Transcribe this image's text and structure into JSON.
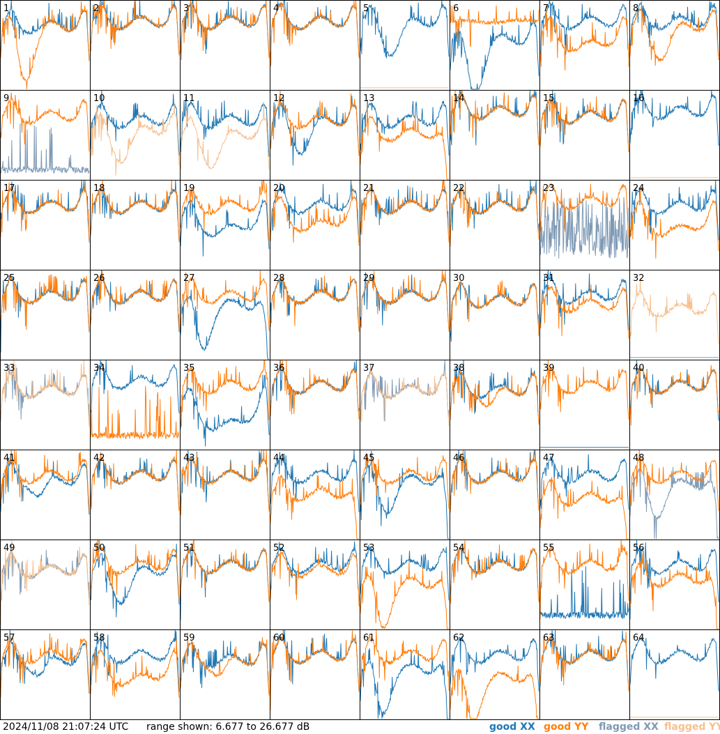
{
  "footer": {
    "timestamp": "2024/11/08 21:07:24 UTC",
    "range_text": "range shown: 6.677 to 26.677 dB"
  },
  "legend": [
    {
      "key": "good_xx",
      "label": "good XX",
      "color": "#1f77b4"
    },
    {
      "key": "good_yy",
      "label": "good YY",
      "color": "#ff7f0e"
    },
    {
      "key": "flagged_xx",
      "label": "flagged XX",
      "color": "#7f9ab5"
    },
    {
      "key": "flagged_yy",
      "label": "flagged YY",
      "color": "#f7c08e"
    }
  ],
  "chart_data": {
    "type": "line",
    "grid": {
      "rows": 8,
      "cols": 8
    },
    "ylim": [
      6.677,
      26.677
    ],
    "yunit": "dB",
    "panels": [
      {
        "id": "1",
        "xx": "good",
        "yy": "good",
        "xx_shape": "normal",
        "yy_shape": "dip_deep",
        "xx_level": 20,
        "yy_level": 20
      },
      {
        "id": "2",
        "xx": "good",
        "yy": "good",
        "xx_shape": "normal",
        "yy_shape": "normal",
        "xx_level": 21,
        "yy_level": 21
      },
      {
        "id": "3",
        "xx": "good",
        "yy": "good",
        "xx_shape": "normal",
        "yy_shape": "normal",
        "xx_level": 21,
        "yy_level": 21
      },
      {
        "id": "4",
        "xx": "good",
        "yy": "good",
        "xx_shape": "normal",
        "yy_shape": "normal",
        "xx_level": 21,
        "yy_level": 21
      },
      {
        "id": "5",
        "xx": "good",
        "yy": "flagged",
        "xx_shape": "dip_mid",
        "yy_shape": "flat_low",
        "xx_level": 21,
        "yy_level": 7
      },
      {
        "id": "6",
        "xx": "good",
        "yy": "good",
        "xx_shape": "dip_deep",
        "yy_shape": "flat",
        "xx_level": 17,
        "yy_level": 22
      },
      {
        "id": "7",
        "xx": "good",
        "yy": "good",
        "xx_shape": "normal",
        "yy_shape": "sag",
        "xx_level": 21,
        "yy_level": 19
      },
      {
        "id": "8",
        "xx": "good",
        "yy": "good",
        "xx_shape": "normal",
        "yy_shape": "dip_mid",
        "xx_level": 21,
        "yy_level": 20
      },
      {
        "id": "9",
        "xx": "flagged",
        "yy": "good",
        "xx_shape": "noise_low",
        "yy_shape": "normal",
        "xx_level": 8,
        "yy_level": 20
      },
      {
        "id": "10",
        "xx": "good",
        "yy": "flagged",
        "xx_shape": "normal",
        "yy_shape": "dip_mid",
        "xx_level": 19,
        "yy_level": 17
      },
      {
        "id": "11",
        "xx": "good",
        "yy": "flagged",
        "xx_shape": "normal",
        "yy_shape": "dip_mid",
        "xx_level": 19,
        "yy_level": 16
      },
      {
        "id": "12",
        "xx": "good",
        "yy": "good",
        "xx_shape": "dip_mid",
        "yy_shape": "normal",
        "xx_level": 19,
        "yy_level": 19
      },
      {
        "id": "13",
        "xx": "good",
        "yy": "good",
        "xx_shape": "normal",
        "yy_shape": "drop_end",
        "xx_level": 19,
        "yy_level": 18
      },
      {
        "id": "14",
        "xx": "good",
        "yy": "good",
        "xx_shape": "normal",
        "yy_shape": "normal",
        "xx_level": 21,
        "yy_level": 21
      },
      {
        "id": "15",
        "xx": "good",
        "yy": "good",
        "xx_shape": "normal",
        "yy_shape": "normal",
        "xx_level": 20,
        "yy_level": 20
      },
      {
        "id": "16",
        "xx": "good",
        "yy": "flagged",
        "xx_shape": "normal",
        "yy_shape": "flat_low",
        "xx_level": 21,
        "yy_level": 7
      },
      {
        "id": "17",
        "xx": "good",
        "yy": "good",
        "xx_shape": "normal",
        "yy_shape": "normal",
        "xx_level": 20,
        "yy_level": 20
      },
      {
        "id": "18",
        "xx": "good",
        "yy": "good",
        "xx_shape": "normal",
        "yy_shape": "normal",
        "xx_level": 20,
        "yy_level": 20
      },
      {
        "id": "19",
        "xx": "good",
        "yy": "good",
        "xx_shape": "sag",
        "yy_shape": "normal",
        "xx_level": 18,
        "yy_level": 20
      },
      {
        "id": "20",
        "xx": "good",
        "yy": "good",
        "xx_shape": "normal",
        "yy_shape": "sag",
        "xx_level": 20,
        "yy_level": 19
      },
      {
        "id": "21",
        "xx": "good",
        "yy": "good",
        "xx_shape": "normal",
        "yy_shape": "normal",
        "xx_level": 20,
        "yy_level": 20
      },
      {
        "id": "22",
        "xx": "good",
        "yy": "good",
        "xx_shape": "normal",
        "yy_shape": "normal",
        "xx_level": 20,
        "yy_level": 20
      },
      {
        "id": "23",
        "xx": "flagged",
        "yy": "good",
        "xx_shape": "noise_high",
        "yy_shape": "normal",
        "xx_level": 14,
        "yy_level": 21
      },
      {
        "id": "24",
        "xx": "good",
        "yy": "good",
        "xx_shape": "normal",
        "yy_shape": "sag",
        "xx_level": 20,
        "yy_level": 18
      },
      {
        "id": "25",
        "xx": "good",
        "yy": "good",
        "xx_shape": "normal",
        "yy_shape": "normal",
        "xx_level": 20,
        "yy_level": 20
      },
      {
        "id": "26",
        "xx": "good",
        "yy": "good",
        "xx_shape": "normal",
        "yy_shape": "normal",
        "xx_level": 20,
        "yy_level": 20
      },
      {
        "id": "27",
        "xx": "good",
        "yy": "good",
        "xx_shape": "dip_deep_drop",
        "yy_shape": "normal",
        "xx_level": 18,
        "yy_level": 20
      },
      {
        "id": "28",
        "xx": "good",
        "yy": "good",
        "xx_shape": "normal",
        "yy_shape": "normal",
        "xx_level": 20,
        "yy_level": 20
      },
      {
        "id": "29",
        "xx": "good",
        "yy": "good",
        "xx_shape": "normal",
        "yy_shape": "normal",
        "xx_level": 20,
        "yy_level": 20
      },
      {
        "id": "30",
        "xx": "good",
        "yy": "good",
        "xx_shape": "normal",
        "yy_shape": "normal",
        "xx_level": 19,
        "yy_level": 19
      },
      {
        "id": "31",
        "xx": "good",
        "yy": "good",
        "xx_shape": "normal",
        "yy_shape": "normal",
        "xx_level": 20,
        "yy_level": 18
      },
      {
        "id": "32",
        "xx": "flagged",
        "yy": "flagged",
        "xx_shape": "flat_low",
        "yy_shape": "normal",
        "xx_level": 7,
        "yy_level": 17
      },
      {
        "id": "33",
        "xx": "flagged",
        "yy": "flagged",
        "xx_shape": "normal",
        "yy_shape": "normal",
        "xx_level": 19,
        "yy_level": 19
      },
      {
        "id": "34",
        "xx": "good",
        "yy": "good",
        "xx_shape": "normal",
        "yy_shape": "noise_low",
        "xx_level": 21,
        "yy_level": 9
      },
      {
        "id": "35",
        "xx": "good",
        "yy": "good",
        "xx_shape": "sag_deep",
        "yy_shape": "normal",
        "xx_level": 17,
        "yy_level": 20
      },
      {
        "id": "36",
        "xx": "good",
        "yy": "good",
        "xx_shape": "normal",
        "yy_shape": "normal",
        "xx_level": 20,
        "yy_level": 20
      },
      {
        "id": "37",
        "xx": "flagged",
        "yy": "flagged",
        "xx_shape": "normal",
        "yy_shape": "normal",
        "xx_level": 19,
        "yy_level": 19
      },
      {
        "id": "38",
        "xx": "good",
        "yy": "good",
        "xx_shape": "normal",
        "yy_shape": "dip_small",
        "xx_level": 19,
        "yy_level": 19
      },
      {
        "id": "39",
        "xx": "good",
        "yy": "good",
        "xx_shape": "flat_low",
        "yy_shape": "normal",
        "xx_level": 7,
        "yy_level": 20
      },
      {
        "id": "40",
        "xx": "good",
        "yy": "good",
        "xx_shape": "normal",
        "yy_shape": "normal",
        "xx_level": 20,
        "yy_level": 20
      },
      {
        "id": "41",
        "xx": "good",
        "yy": "good",
        "xx_shape": "dip_small",
        "yy_shape": "normal",
        "xx_level": 19,
        "yy_level": 20
      },
      {
        "id": "42",
        "xx": "good",
        "yy": "good",
        "xx_shape": "normal",
        "yy_shape": "normal",
        "xx_level": 20,
        "yy_level": 20
      },
      {
        "id": "43",
        "xx": "good",
        "yy": "good",
        "xx_shape": "normal",
        "yy_shape": "normal",
        "xx_level": 20,
        "yy_level": 20
      },
      {
        "id": "44",
        "xx": "good",
        "yy": "good",
        "xx_shape": "normal",
        "yy_shape": "drop_end",
        "xx_level": 20,
        "yy_level": 18
      },
      {
        "id": "45",
        "xx": "good",
        "yy": "good",
        "xx_shape": "dip_mid_drop",
        "yy_shape": "normal",
        "xx_level": 19,
        "yy_level": 20
      },
      {
        "id": "46",
        "xx": "good",
        "yy": "good",
        "xx_shape": "normal",
        "yy_shape": "normal",
        "xx_level": 20,
        "yy_level": 20
      },
      {
        "id": "47",
        "xx": "good",
        "yy": "good",
        "xx_shape": "normal",
        "yy_shape": "drop_end",
        "xx_level": 20,
        "yy_level": 17
      },
      {
        "id": "48",
        "xx": "flagged",
        "yy": "good",
        "xx_shape": "dip_mid_drop",
        "yy_shape": "normal",
        "xx_level": 18,
        "yy_level": 20
      },
      {
        "id": "49",
        "xx": "flagged",
        "yy": "flagged",
        "xx_shape": "normal",
        "yy_shape": "normal",
        "xx_level": 19,
        "yy_level": 19
      },
      {
        "id": "50",
        "xx": "good",
        "yy": "good",
        "xx_shape": "dip_mid",
        "yy_shape": "normal",
        "xx_level": 19,
        "yy_level": 20
      },
      {
        "id": "51",
        "xx": "good",
        "yy": "good",
        "xx_shape": "normal",
        "yy_shape": "normal",
        "xx_level": 20,
        "yy_level": 20
      },
      {
        "id": "52",
        "xx": "good",
        "yy": "good",
        "xx_shape": "normal",
        "yy_shape": "normal",
        "xx_level": 20,
        "yy_level": 19
      },
      {
        "id": "53",
        "xx": "good",
        "yy": "good",
        "xx_shape": "normal",
        "yy_shape": "dip_deep_drop",
        "xx_level": 20,
        "yy_level": 16
      },
      {
        "id": "54",
        "xx": "good",
        "yy": "good",
        "xx_shape": "normal",
        "yy_shape": "normal",
        "xx_level": 20,
        "yy_level": 20
      },
      {
        "id": "55",
        "xx": "good",
        "yy": "good",
        "xx_shape": "noise_low",
        "yy_shape": "normal",
        "xx_level": 9,
        "yy_level": 20
      },
      {
        "id": "56",
        "xx": "good",
        "yy": "good",
        "xx_shape": "normal",
        "yy_shape": "drop_end",
        "xx_level": 20,
        "yy_level": 19
      },
      {
        "id": "57",
        "xx": "good",
        "yy": "good",
        "xx_shape": "dip_small",
        "yy_shape": "normal",
        "xx_level": 19,
        "yy_level": 20
      },
      {
        "id": "58",
        "xx": "good",
        "yy": "good",
        "xx_shape": "normal",
        "yy_shape": "sag",
        "xx_level": 20,
        "yy_level": 18
      },
      {
        "id": "59",
        "xx": "good",
        "yy": "good",
        "xx_shape": "normal",
        "yy_shape": "dip_small",
        "xx_level": 19,
        "yy_level": 19
      },
      {
        "id": "60",
        "xx": "good",
        "yy": "good",
        "xx_shape": "normal",
        "yy_shape": "normal",
        "xx_level": 20,
        "yy_level": 20
      },
      {
        "id": "61",
        "xx": "good",
        "yy": "good",
        "xx_shape": "dip_deep_drop",
        "yy_shape": "normal",
        "xx_level": 17,
        "yy_level": 20
      },
      {
        "id": "62",
        "xx": "good",
        "yy": "good",
        "xx_shape": "normal",
        "yy_shape": "dip_deep_drop",
        "xx_level": 20,
        "yy_level": 15
      },
      {
        "id": "63",
        "xx": "good",
        "yy": "good",
        "xx_shape": "normal",
        "yy_shape": "normal",
        "xx_level": 20,
        "yy_level": 20
      },
      {
        "id": "64",
        "xx": "good",
        "yy": "flagged",
        "xx_shape": "normal",
        "yy_shape": "flat_low",
        "xx_level": 20,
        "yy_level": 7
      }
    ]
  }
}
